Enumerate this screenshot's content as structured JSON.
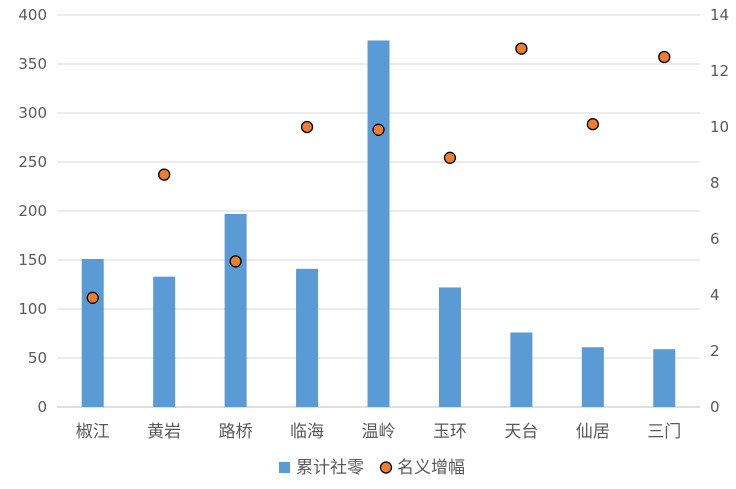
{
  "chart_data": {
    "type": "bar",
    "categories": [
      "椒江",
      "黄岩",
      "路桥",
      "临海",
      "温岭",
      "玉环",
      "天台",
      "仙居",
      "三门"
    ],
    "series": [
      {
        "name": "累计社零",
        "type": "bar",
        "axis": "left",
        "color": "#5B9BD5",
        "values": [
          151,
          133,
          197,
          141,
          374,
          122,
          76,
          61,
          59
        ]
      },
      {
        "name": "名义增幅",
        "type": "scatter",
        "axis": "right",
        "color": "#ED7D31",
        "values": [
          3.9,
          8.3,
          5.2,
          10.0,
          9.9,
          8.9,
          12.8,
          10.1,
          12.5
        ]
      }
    ],
    "y_left": {
      "min": 0,
      "max": 400,
      "ticks": [
        0,
        50,
        100,
        150,
        200,
        250,
        300,
        350,
        400
      ]
    },
    "y_right": {
      "min": 0,
      "max": 14,
      "ticks": [
        0,
        2,
        4,
        6,
        8,
        10,
        12,
        14
      ]
    },
    "grid": true,
    "legend_position": "bottom",
    "title": "",
    "xlabel": "",
    "ylabel": ""
  }
}
